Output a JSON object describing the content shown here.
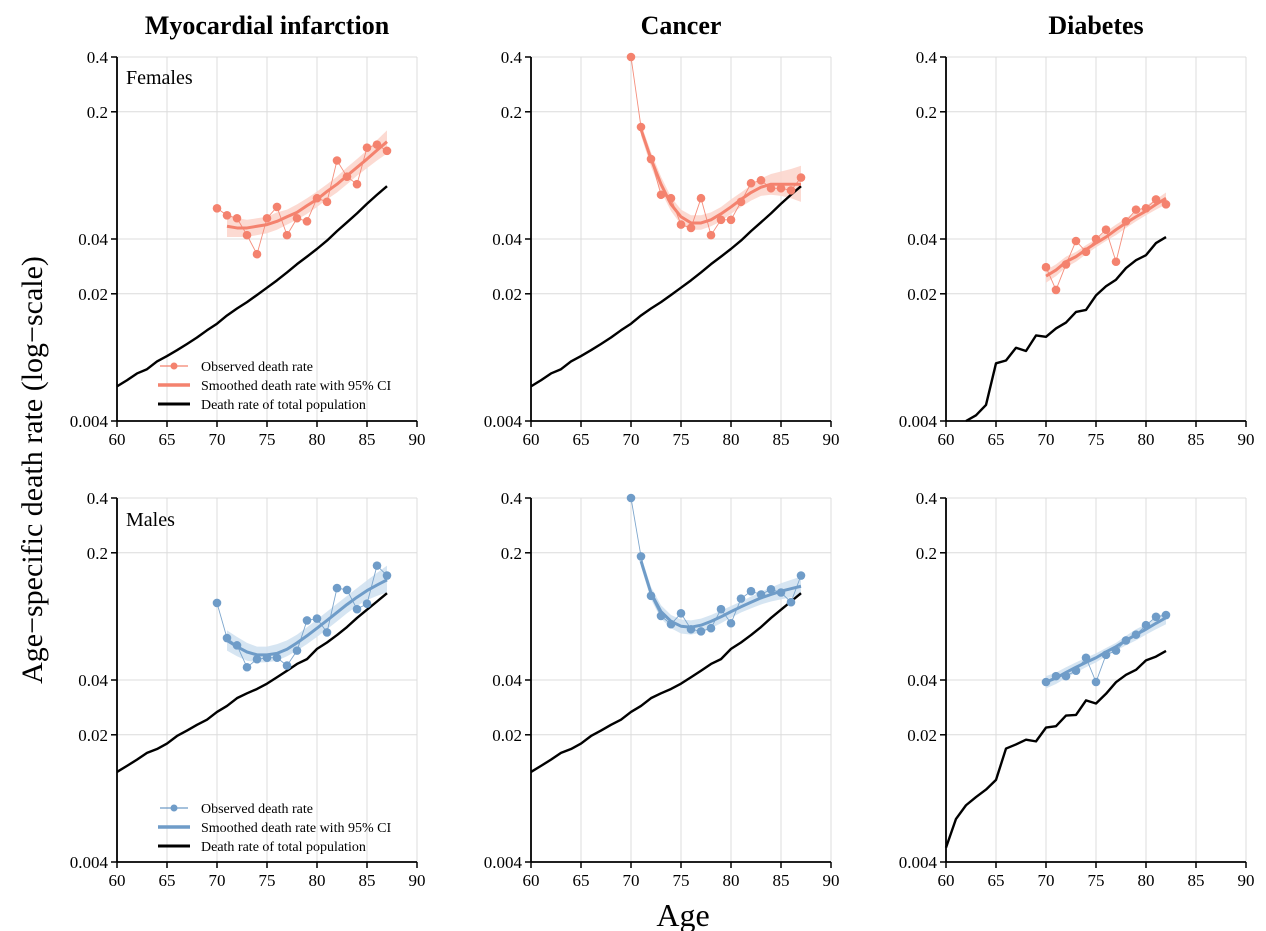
{
  "figure": {
    "ylabel": "Age−specific death rate (log−scale)",
    "xlabel": "Age",
    "column_titles": [
      "Myocardial infarction",
      "Cancer",
      "Diabetes"
    ],
    "row_labels": [
      "Females",
      "Males"
    ],
    "legend": {
      "observed": "Observed death rate",
      "smoothed": "Smoothed death rate with 95% CI",
      "total": "Death rate of total population"
    },
    "colors": {
      "female": "#f4826e",
      "female_ci": "#fbd3ca",
      "male": "#6f9cc8",
      "male_ci": "#cfe0f0",
      "total": "#000000",
      "grid": "#dcdcdc"
    },
    "x_ticks": [
      60,
      65,
      70,
      75,
      80,
      85,
      90
    ],
    "y_ticks": [
      0.004,
      0.02,
      0.04,
      0.2,
      0.4
    ],
    "y_tick_labels": [
      "0.004",
      "0.02",
      "0.04",
      "0.2",
      "0.4"
    ]
  },
  "chart_data": [
    {
      "type": "scatter",
      "panel": "female-mi",
      "title": "Myocardial infarction",
      "row": "Females",
      "xlim": [
        60,
        90
      ],
      "ylim": [
        0.004,
        0.4
      ],
      "yscale": "log",
      "observed": {
        "x": [
          70,
          71,
          72,
          73,
          74,
          75,
          76,
          77,
          78,
          79,
          80,
          81,
          82,
          83,
          84,
          85,
          86,
          87
        ],
        "y": [
          0.059,
          0.054,
          0.052,
          0.042,
          0.033,
          0.052,
          0.06,
          0.042,
          0.052,
          0.05,
          0.067,
          0.064,
          0.108,
          0.088,
          0.08,
          0.127,
          0.132,
          0.122
        ]
      },
      "smoothed": {
        "x": [
          71,
          72,
          73,
          74,
          75,
          76,
          77,
          78,
          79,
          80,
          81,
          82,
          83,
          84,
          85,
          86,
          87
        ],
        "y": [
          0.047,
          0.046,
          0.046,
          0.047,
          0.048,
          0.05,
          0.053,
          0.056,
          0.061,
          0.066,
          0.073,
          0.08,
          0.089,
          0.099,
          0.11,
          0.123,
          0.137
        ],
        "ci_lower": [
          0.041,
          0.041,
          0.041,
          0.042,
          0.043,
          0.045,
          0.048,
          0.051,
          0.055,
          0.06,
          0.066,
          0.072,
          0.08,
          0.089,
          0.098,
          0.108,
          0.118
        ],
        "ci_upper": [
          0.055,
          0.052,
          0.051,
          0.052,
          0.053,
          0.056,
          0.058,
          0.062,
          0.067,
          0.073,
          0.08,
          0.088,
          0.099,
          0.11,
          0.123,
          0.14,
          0.158
        ]
      },
      "total": {
        "x": [
          60,
          61,
          62,
          63,
          64,
          65,
          66,
          67,
          68,
          69,
          70,
          71,
          72,
          73,
          74,
          75,
          76,
          77,
          78,
          79,
          80,
          81,
          82,
          83,
          84,
          85,
          86,
          87
        ],
        "y": [
          0.0062,
          0.0067,
          0.0073,
          0.0077,
          0.0085,
          0.0091,
          0.0098,
          0.0106,
          0.0115,
          0.0126,
          0.0137,
          0.0152,
          0.0166,
          0.018,
          0.0197,
          0.0216,
          0.0237,
          0.0262,
          0.0291,
          0.032,
          0.0353,
          0.0392,
          0.0442,
          0.0494,
          0.0553,
          0.0625,
          0.07,
          0.078
        ]
      }
    },
    {
      "type": "scatter",
      "panel": "female-cancer",
      "title": "Cancer",
      "row": "Females",
      "xlim": [
        60,
        90
      ],
      "ylim": [
        0.004,
        0.4
      ],
      "yscale": "log",
      "observed": {
        "x": [
          70,
          71,
          72,
          73,
          74,
          75,
          76,
          77,
          78,
          79,
          80,
          81,
          82,
          83,
          84,
          85,
          86,
          87
        ],
        "y": [
          0.4,
          0.165,
          0.11,
          0.07,
          0.067,
          0.048,
          0.046,
          0.067,
          0.042,
          0.051,
          0.051,
          0.064,
          0.081,
          0.084,
          0.076,
          0.076,
          0.074,
          0.087
        ]
      },
      "smoothed": {
        "x": [
          71,
          72,
          73,
          74,
          75,
          76,
          77,
          78,
          79,
          80,
          81,
          82,
          83,
          84,
          85,
          86,
          87
        ],
        "y": [
          0.16,
          0.11,
          0.08,
          0.062,
          0.053,
          0.049,
          0.049,
          0.051,
          0.055,
          0.06,
          0.066,
          0.072,
          0.077,
          0.08,
          0.08,
          0.08,
          0.08
        ],
        "ci_lower": [
          0.148,
          0.1,
          0.073,
          0.057,
          0.048,
          0.045,
          0.045,
          0.047,
          0.05,
          0.055,
          0.06,
          0.065,
          0.069,
          0.07,
          0.069,
          0.067,
          0.064
        ],
        "ci_upper": [
          0.172,
          0.12,
          0.088,
          0.068,
          0.058,
          0.054,
          0.054,
          0.056,
          0.06,
          0.066,
          0.072,
          0.079,
          0.086,
          0.091,
          0.094,
          0.097,
          0.101
        ]
      },
      "total": {
        "x": [
          60,
          61,
          62,
          63,
          64,
          65,
          66,
          67,
          68,
          69,
          70,
          71,
          72,
          73,
          74,
          75,
          76,
          77,
          78,
          79,
          80,
          81,
          82,
          83,
          84,
          85,
          86,
          87
        ],
        "y": [
          0.0062,
          0.0067,
          0.0073,
          0.0077,
          0.0085,
          0.0091,
          0.0098,
          0.0106,
          0.0115,
          0.0126,
          0.0137,
          0.0152,
          0.0166,
          0.018,
          0.0197,
          0.0216,
          0.0237,
          0.0262,
          0.0291,
          0.032,
          0.0353,
          0.0392,
          0.0442,
          0.0494,
          0.0553,
          0.0625,
          0.07,
          0.078
        ]
      }
    },
    {
      "type": "scatter",
      "panel": "female-diabetes",
      "title": "Diabetes",
      "row": "Females",
      "xlim": [
        60,
        90
      ],
      "ylim": [
        0.004,
        0.4
      ],
      "yscale": "log",
      "observed": {
        "x": [
          70,
          71,
          72,
          73,
          74,
          75,
          76,
          77,
          78,
          79,
          80,
          81,
          82
        ],
        "y": [
          0.028,
          0.021,
          0.029,
          0.039,
          0.034,
          0.04,
          0.045,
          0.03,
          0.05,
          0.058,
          0.059,
          0.066,
          0.062
        ]
      },
      "smoothed": {
        "x": [
          70,
          71,
          72,
          73,
          74,
          75,
          76,
          77,
          78,
          79,
          80,
          81,
          82
        ],
        "y": [
          0.025,
          0.027,
          0.03,
          0.032,
          0.035,
          0.038,
          0.041,
          0.045,
          0.049,
          0.053,
          0.057,
          0.062,
          0.067
        ],
        "ci_lower": [
          0.023,
          0.025,
          0.028,
          0.03,
          0.033,
          0.036,
          0.039,
          0.042,
          0.046,
          0.05,
          0.054,
          0.058,
          0.062
        ],
        "ci_upper": [
          0.027,
          0.029,
          0.032,
          0.034,
          0.037,
          0.04,
          0.044,
          0.048,
          0.052,
          0.057,
          0.061,
          0.066,
          0.072
        ]
      },
      "total": {
        "x": [
          62,
          63,
          64,
          65,
          66,
          67,
          68,
          69,
          70,
          71,
          72,
          73,
          74,
          75,
          76,
          77,
          78,
          79,
          80,
          81,
          82
        ],
        "y": [
          0.004,
          0.0043,
          0.0049,
          0.0083,
          0.0086,
          0.0101,
          0.0097,
          0.0118,
          0.0116,
          0.0129,
          0.0139,
          0.0159,
          0.0163,
          0.0196,
          0.022,
          0.0239,
          0.0277,
          0.0306,
          0.0326,
          0.038,
          0.041
        ]
      }
    },
    {
      "type": "scatter",
      "panel": "male-mi",
      "title": "Myocardial infarction",
      "row": "Males",
      "xlim": [
        60,
        90
      ],
      "ylim": [
        0.004,
        0.4
      ],
      "yscale": "log",
      "observed": {
        "x": [
          70,
          71,
          72,
          73,
          74,
          75,
          76,
          77,
          78,
          79,
          80,
          81,
          82,
          83,
          84,
          85,
          86,
          87
        ],
        "y": [
          0.106,
          0.068,
          0.062,
          0.047,
          0.052,
          0.053,
          0.053,
          0.048,
          0.058,
          0.085,
          0.087,
          0.073,
          0.128,
          0.125,
          0.098,
          0.105,
          0.17,
          0.15
        ]
      },
      "smoothed": {
        "x": [
          71,
          72,
          73,
          74,
          75,
          76,
          77,
          78,
          79,
          80,
          81,
          82,
          83,
          84,
          85,
          86,
          87
        ],
        "y": [
          0.066,
          0.061,
          0.057,
          0.055,
          0.055,
          0.056,
          0.059,
          0.064,
          0.07,
          0.077,
          0.085,
          0.094,
          0.104,
          0.114,
          0.124,
          0.133,
          0.142
        ],
        "ci_lower": [
          0.058,
          0.054,
          0.051,
          0.05,
          0.05,
          0.051,
          0.054,
          0.058,
          0.063,
          0.069,
          0.076,
          0.084,
          0.093,
          0.102,
          0.11,
          0.116,
          0.121
        ],
        "ci_upper": [
          0.075,
          0.069,
          0.064,
          0.061,
          0.061,
          0.063,
          0.066,
          0.071,
          0.078,
          0.086,
          0.095,
          0.105,
          0.116,
          0.128,
          0.141,
          0.155,
          0.17
        ]
      },
      "total": {
        "x": [
          60,
          61,
          62,
          63,
          64,
          65,
          66,
          67,
          68,
          69,
          70,
          71,
          72,
          73,
          74,
          75,
          76,
          77,
          78,
          79,
          80,
          81,
          82,
          83,
          84,
          85,
          86,
          87
        ],
        "y": [
          0.0125,
          0.0135,
          0.0146,
          0.0159,
          0.0167,
          0.0179,
          0.0197,
          0.0211,
          0.0227,
          0.0242,
          0.0267,
          0.0288,
          0.0318,
          0.0338,
          0.0357,
          0.0382,
          0.0414,
          0.045,
          0.049,
          0.0521,
          0.0593,
          0.0643,
          0.0706,
          0.0782,
          0.0877,
          0.0973,
          0.108,
          0.12
        ]
      }
    },
    {
      "type": "scatter",
      "panel": "male-cancer",
      "title": "Cancer",
      "row": "Males",
      "xlim": [
        60,
        90
      ],
      "ylim": [
        0.004,
        0.4
      ],
      "yscale": "log",
      "observed": {
        "x": [
          70,
          71,
          72,
          73,
          74,
          75,
          76,
          77,
          78,
          79,
          80,
          81,
          82,
          83,
          84,
          85,
          86,
          87
        ],
        "y": [
          0.4,
          0.191,
          0.116,
          0.09,
          0.081,
          0.093,
          0.076,
          0.074,
          0.077,
          0.098,
          0.082,
          0.112,
          0.123,
          0.118,
          0.126,
          0.121,
          0.107,
          0.15
        ]
      },
      "smoothed": {
        "x": [
          71,
          72,
          73,
          74,
          75,
          76,
          77,
          78,
          79,
          80,
          81,
          82,
          83,
          84,
          85,
          86,
          87
        ],
        "y": [
          0.18,
          0.12,
          0.095,
          0.084,
          0.079,
          0.078,
          0.08,
          0.084,
          0.089,
          0.095,
          0.101,
          0.107,
          0.113,
          0.118,
          0.123,
          0.127,
          0.131
        ],
        "ci_lower": [
          0.168,
          0.111,
          0.087,
          0.077,
          0.072,
          0.071,
          0.073,
          0.077,
          0.082,
          0.088,
          0.094,
          0.099,
          0.104,
          0.108,
          0.111,
          0.114,
          0.116
        ],
        "ci_upper": [
          0.193,
          0.13,
          0.103,
          0.091,
          0.086,
          0.085,
          0.087,
          0.091,
          0.096,
          0.102,
          0.108,
          0.115,
          0.122,
          0.129,
          0.136,
          0.142,
          0.148
        ]
      },
      "total": {
        "x": [
          60,
          61,
          62,
          63,
          64,
          65,
          66,
          67,
          68,
          69,
          70,
          71,
          72,
          73,
          74,
          75,
          76,
          77,
          78,
          79,
          80,
          81,
          82,
          83,
          84,
          85,
          86,
          87
        ],
        "y": [
          0.0125,
          0.0135,
          0.0146,
          0.0159,
          0.0167,
          0.0179,
          0.0197,
          0.0211,
          0.0227,
          0.0242,
          0.0267,
          0.0288,
          0.0318,
          0.0338,
          0.0357,
          0.0382,
          0.0414,
          0.045,
          0.049,
          0.0521,
          0.0593,
          0.0643,
          0.0706,
          0.0782,
          0.0877,
          0.0973,
          0.108,
          0.12
        ]
      }
    },
    {
      "type": "scatter",
      "panel": "male-diabetes",
      "title": "Diabetes",
      "row": "Males",
      "xlim": [
        60,
        90
      ],
      "ylim": [
        0.004,
        0.4
      ],
      "yscale": "log",
      "observed": {
        "x": [
          70,
          71,
          72,
          73,
          74,
          75,
          76,
          77,
          78,
          79,
          80,
          81,
          82
        ],
        "y": [
          0.039,
          0.042,
          0.042,
          0.045,
          0.053,
          0.039,
          0.055,
          0.058,
          0.066,
          0.071,
          0.08,
          0.089,
          0.091
        ]
      },
      "smoothed": {
        "x": [
          70,
          71,
          72,
          73,
          74,
          75,
          76,
          77,
          78,
          79,
          80,
          81,
          82
        ],
        "y": [
          0.039,
          0.041,
          0.044,
          0.047,
          0.05,
          0.053,
          0.057,
          0.061,
          0.066,
          0.071,
          0.076,
          0.082,
          0.088
        ],
        "ci_lower": [
          0.036,
          0.038,
          0.041,
          0.044,
          0.047,
          0.05,
          0.054,
          0.058,
          0.062,
          0.066,
          0.071,
          0.076,
          0.081
        ],
        "ci_upper": [
          0.042,
          0.044,
          0.047,
          0.05,
          0.053,
          0.056,
          0.06,
          0.064,
          0.07,
          0.076,
          0.081,
          0.088,
          0.095
        ]
      },
      "total": {
        "x": [
          60,
          61,
          62,
          63,
          64,
          65,
          66,
          67,
          68,
          69,
          70,
          71,
          72,
          73,
          74,
          75,
          76,
          77,
          78,
          79,
          80,
          81,
          82
        ],
        "y": [
          0.0048,
          0.0069,
          0.0082,
          0.0091,
          0.01,
          0.0113,
          0.0168,
          0.0177,
          0.0188,
          0.0184,
          0.0219,
          0.0223,
          0.0255,
          0.0257,
          0.0309,
          0.0297,
          0.0336,
          0.0389,
          0.0427,
          0.0455,
          0.0513,
          0.0538,
          0.0578
        ]
      }
    }
  ]
}
